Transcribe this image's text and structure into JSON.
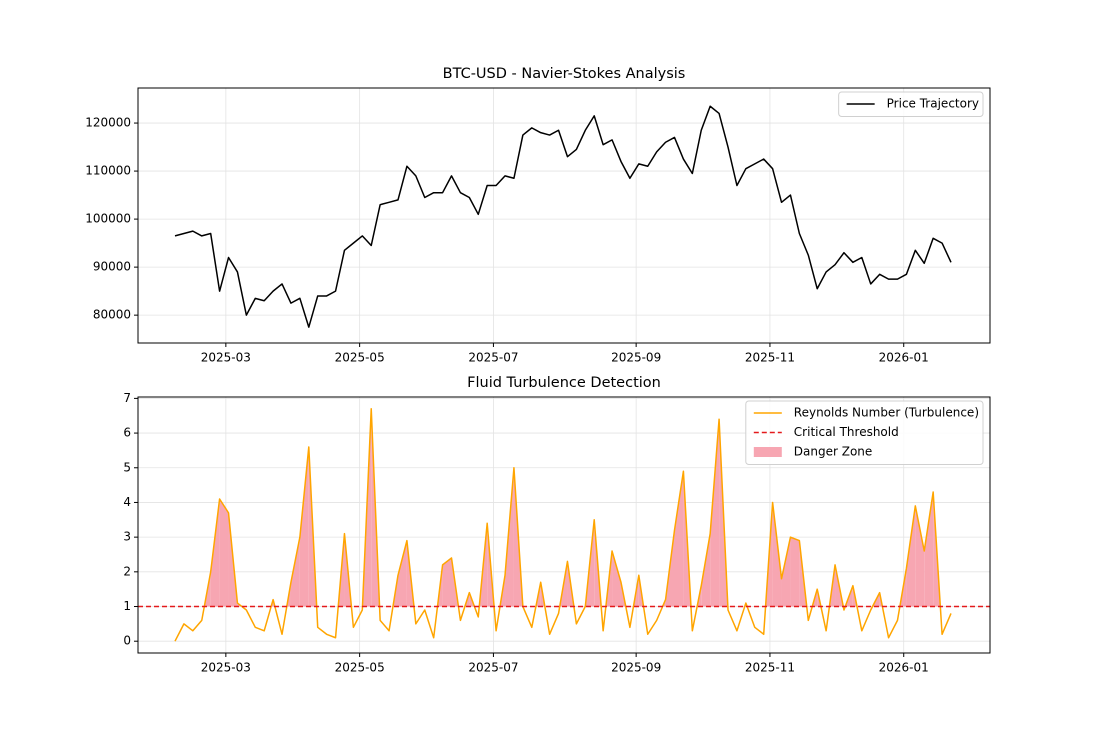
{
  "chart_data": [
    {
      "type": "line",
      "title": "BTC-USD - Navier-Stokes Analysis",
      "x": [
        "2025-02",
        "2025-02",
        "2025-02",
        "2025-02",
        "2025-02",
        "2025-02",
        "2025-03",
        "2025-03",
        "2025-03",
        "2025-03",
        "2025-03",
        "2025-03",
        "2025-03",
        "2025-03",
        "2025-04",
        "2025-04",
        "2025-04",
        "2025-04",
        "2025-04",
        "2025-04",
        "2025-04",
        "2025-05",
        "2025-05",
        "2025-05",
        "2025-05",
        "2025-05",
        "2025-05",
        "2025-05",
        "2025-05",
        "2025-06",
        "2025-06",
        "2025-06",
        "2025-06",
        "2025-06",
        "2025-06",
        "2025-06",
        "2025-07",
        "2025-07",
        "2025-07",
        "2025-07",
        "2025-07",
        "2025-07",
        "2025-07",
        "2025-07",
        "2025-08",
        "2025-08",
        "2025-08",
        "2025-08",
        "2025-08",
        "2025-08",
        "2025-08",
        "2025-08",
        "2025-09",
        "2025-09",
        "2025-09",
        "2025-09",
        "2025-09",
        "2025-09",
        "2025-09",
        "2025-10",
        "2025-10",
        "2025-10",
        "2025-10",
        "2025-10",
        "2025-10",
        "2025-10",
        "2025-10",
        "2025-11",
        "2025-11",
        "2025-11",
        "2025-11",
        "2025-11",
        "2025-11",
        "2025-11",
        "2025-11",
        "2025-12",
        "2025-12",
        "2025-12",
        "2025-12",
        "2025-12",
        "2025-12",
        "2025-12",
        "2026-01",
        "2026-01",
        "2026-01",
        "2026-01",
        "2026-01",
        "2026-01"
      ],
      "series": [
        {
          "name": "Price Trajectory",
          "color": "#000000",
          "values": [
            96500,
            97000,
            97500,
            96500,
            97000,
            85000,
            92000,
            89000,
            80000,
            83500,
            83000,
            85000,
            86500,
            82500,
            83500,
            77500,
            84000,
            84000,
            85000,
            93500,
            95000,
            96500,
            94500,
            103000,
            103500,
            104000,
            111000,
            109000,
            104500,
            105500,
            105500,
            109000,
            105500,
            104500,
            101000,
            107000,
            107000,
            109000,
            108500,
            117500,
            119000,
            118000,
            117500,
            118500,
            113000,
            114500,
            118500,
            121500,
            115500,
            116500,
            112000,
            108500,
            111500,
            111000,
            114000,
            116000,
            117000,
            112500,
            109500,
            118500,
            123500,
            122000,
            115000,
            107000,
            110500,
            111500,
            112500,
            110500,
            103500,
            105000,
            97000,
            92500,
            85500,
            89000,
            90500,
            93000,
            91000,
            92000,
            86500,
            88500,
            87500,
            87500,
            88500,
            93500,
            90800,
            96000,
            95000,
            91000
          ]
        }
      ],
      "xticks": [
        "2025-03",
        "2025-05",
        "2025-07",
        "2025-09",
        "2025-11",
        "2026-01"
      ],
      "ylim": [
        74200,
        127300
      ],
      "yticks": [
        80000,
        90000,
        100000,
        110000,
        120000
      ],
      "grid": true,
      "legend": "upper right"
    },
    {
      "type": "line",
      "title": "Fluid Turbulence Detection",
      "x": [
        "2025-02",
        "2025-02",
        "2025-02",
        "2025-02",
        "2025-02",
        "2025-02",
        "2025-03",
        "2025-03",
        "2025-03",
        "2025-03",
        "2025-03",
        "2025-03",
        "2025-03",
        "2025-03",
        "2025-04",
        "2025-04",
        "2025-04",
        "2025-04",
        "2025-04",
        "2025-04",
        "2025-04",
        "2025-05",
        "2025-05",
        "2025-05",
        "2025-05",
        "2025-05",
        "2025-05",
        "2025-05",
        "2025-05",
        "2025-06",
        "2025-06",
        "2025-06",
        "2025-06",
        "2025-06",
        "2025-06",
        "2025-06",
        "2025-07",
        "2025-07",
        "2025-07",
        "2025-07",
        "2025-07",
        "2025-07",
        "2025-07",
        "2025-07",
        "2025-08",
        "2025-08",
        "2025-08",
        "2025-08",
        "2025-08",
        "2025-08",
        "2025-08",
        "2025-08",
        "2025-09",
        "2025-09",
        "2025-09",
        "2025-09",
        "2025-09",
        "2025-09",
        "2025-09",
        "2025-10",
        "2025-10",
        "2025-10",
        "2025-10",
        "2025-10",
        "2025-10",
        "2025-10",
        "2025-10",
        "2025-11",
        "2025-11",
        "2025-11",
        "2025-11",
        "2025-11",
        "2025-11",
        "2025-11",
        "2025-11",
        "2025-12",
        "2025-12",
        "2025-12",
        "2025-12",
        "2025-12",
        "2025-12",
        "2025-12",
        "2026-01",
        "2026-01",
        "2026-01",
        "2026-01",
        "2026-01",
        "2026-01"
      ],
      "series": [
        {
          "name": "Reynolds Number (Turbulence)",
          "color": "#ffa500",
          "values": [
            0,
            0.5,
            0.3,
            0.6,
            2.0,
            4.1,
            3.7,
            1.1,
            0.9,
            0.4,
            0.3,
            1.2,
            0.2,
            1.7,
            3.0,
            5.6,
            0.4,
            0.2,
            0.1,
            3.1,
            0.4,
            0.9,
            6.7,
            0.6,
            0.3,
            1.9,
            2.9,
            0.5,
            0.9,
            0.1,
            2.2,
            2.4,
            0.6,
            1.4,
            0.7,
            3.4,
            0.3,
            1.9,
            5.0,
            1.0,
            0.4,
            1.7,
            0.2,
            0.8,
            2.3,
            0.5,
            1.0,
            3.5,
            0.3,
            2.6,
            1.7,
            0.4,
            1.9,
            0.2,
            0.6,
            1.2,
            3.2,
            4.9,
            0.3,
            1.6,
            3.1,
            6.4,
            0.9,
            0.3,
            1.1,
            0.4,
            0.2,
            4.0,
            1.8,
            3.0,
            2.9,
            0.6,
            1.5,
            0.3,
            2.2,
            0.9,
            1.6,
            0.3,
            0.9,
            1.4,
            0.1,
            0.6,
            2.1,
            3.9,
            2.6,
            4.3,
            0.2,
            0.8
          ]
        }
      ],
      "threshold": {
        "name": "Critical Threshold",
        "value": 1.0,
        "color": "#e41a1c"
      },
      "danger_zone": {
        "name": "Danger Zone",
        "color": "#f7a6b2"
      },
      "xticks": [
        "2025-03",
        "2025-05",
        "2025-07",
        "2025-09",
        "2025-11",
        "2026-01"
      ],
      "ylim": [
        -0.34,
        7.04
      ],
      "yticks": [
        0,
        1,
        2,
        3,
        4,
        5,
        6,
        7
      ],
      "grid": true,
      "legend": "upper right"
    }
  ]
}
